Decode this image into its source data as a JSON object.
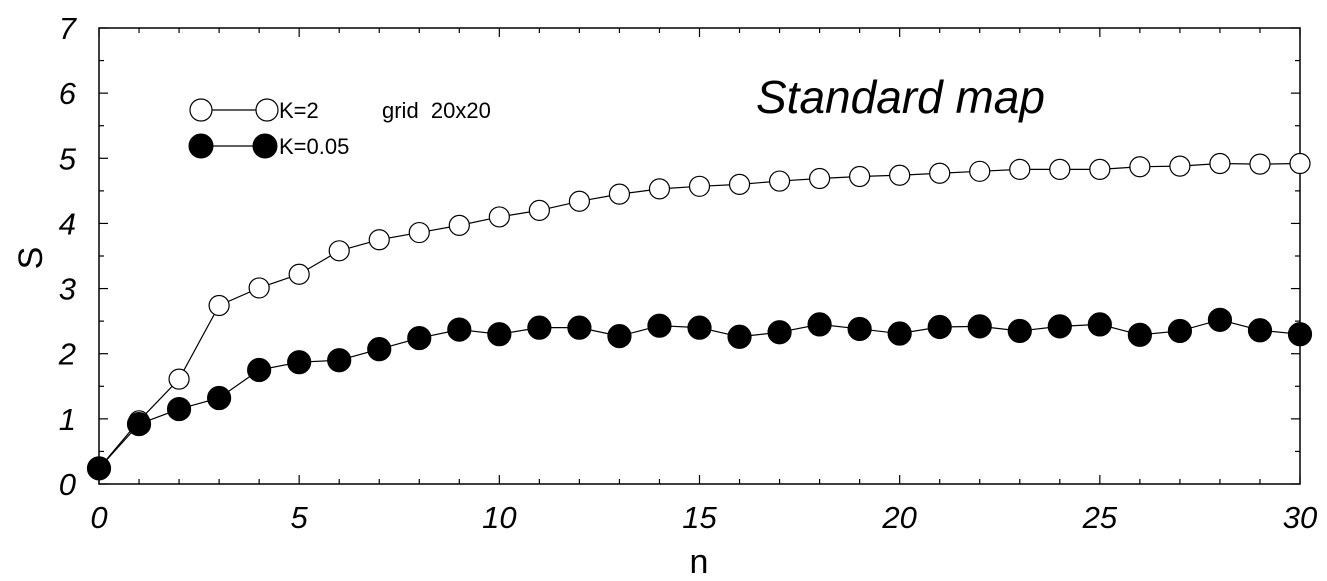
{
  "chart_data": {
    "type": "line",
    "title": "Standard map",
    "annotation": "grid  20x20",
    "xlabel": "n",
    "ylabel": "S",
    "xlim": [
      0,
      30
    ],
    "ylim": [
      0,
      7
    ],
    "xticks": [
      0,
      5,
      10,
      15,
      20,
      25,
      30
    ],
    "yticks": [
      0,
      1,
      2,
      3,
      4,
      5,
      6,
      7
    ],
    "grid": false,
    "legend_position": "top-left",
    "series": [
      {
        "name": "K=2",
        "marker": "open-circle",
        "color": "#000000",
        "x": [
          0,
          1,
          2,
          3,
          4,
          5,
          6,
          7,
          8,
          9,
          10,
          11,
          12,
          13,
          14,
          15,
          16,
          17,
          18,
          19,
          20,
          21,
          22,
          23,
          24,
          25,
          26,
          27,
          28,
          29,
          30
        ],
        "y": [
          0.24,
          0.97,
          1.61,
          2.74,
          3.01,
          3.22,
          3.58,
          3.75,
          3.86,
          3.97,
          4.1,
          4.2,
          4.34,
          4.45,
          4.53,
          4.57,
          4.6,
          4.65,
          4.69,
          4.72,
          4.74,
          4.77,
          4.8,
          4.83,
          4.83,
          4.83,
          4.87,
          4.88,
          4.92,
          4.91,
          4.92
        ]
      },
      {
        "name": "K=0.05",
        "marker": "filled-circle",
        "color": "#000000",
        "x": [
          0,
          1,
          2,
          3,
          4,
          5,
          6,
          7,
          8,
          9,
          10,
          11,
          12,
          13,
          14,
          15,
          16,
          17,
          18,
          19,
          20,
          21,
          22,
          23,
          24,
          25,
          26,
          27,
          28,
          29,
          30
        ],
        "y": [
          0.24,
          0.92,
          1.15,
          1.32,
          1.75,
          1.87,
          1.9,
          2.07,
          2.24,
          2.37,
          2.3,
          2.4,
          2.4,
          2.27,
          2.43,
          2.4,
          2.26,
          2.33,
          2.45,
          2.38,
          2.31,
          2.41,
          2.42,
          2.35,
          2.42,
          2.45,
          2.29,
          2.35,
          2.52,
          2.36,
          2.3
        ]
      }
    ]
  }
}
